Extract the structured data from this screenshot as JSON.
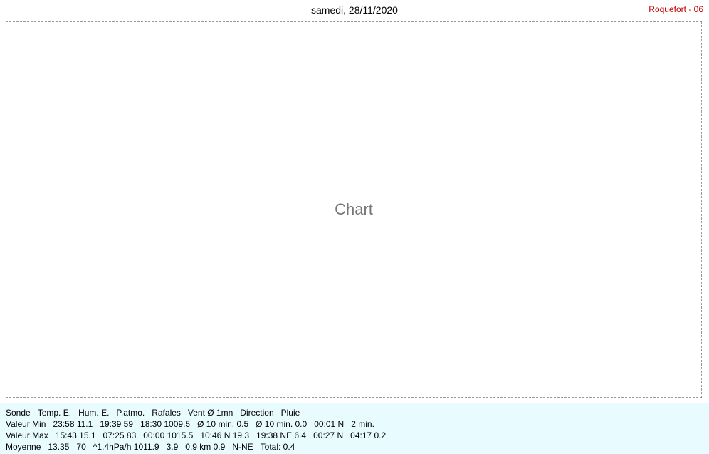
{
  "title": "samedi, 28/11/2020",
  "station": "Roquefort - 06",
  "placeholder": "Chart",
  "stats": {
    "row1": [
      "Sonde",
      "Temp. E.",
      "Hum. E.",
      "P.atmo.",
      "Rafales",
      "Vent Ø 1mn",
      "Direction",
      "Pluie"
    ],
    "row2": [
      "Valeur Min",
      "23:58 11.1",
      "19:39 59",
      "18:30 1009.5",
      "Ø 10 min. 0.5",
      "Ø 10 min. 0.0",
      "00:01 N",
      "2 min."
    ],
    "row3": [
      "Valeur Max",
      "15:43 15.1",
      "07:25 83",
      "00:00 1015.5",
      "10:46 N 19.3",
      "19:38 NE 6.4",
      "00:27 N",
      "04:17 0.2"
    ],
    "row4": [
      "Moyenne",
      "13.35",
      "70",
      "^1.4hPa/h 1011.9",
      "3.9",
      "0.9 km 0.9",
      "N-NE",
      "Total: 0.4"
    ]
  }
}
